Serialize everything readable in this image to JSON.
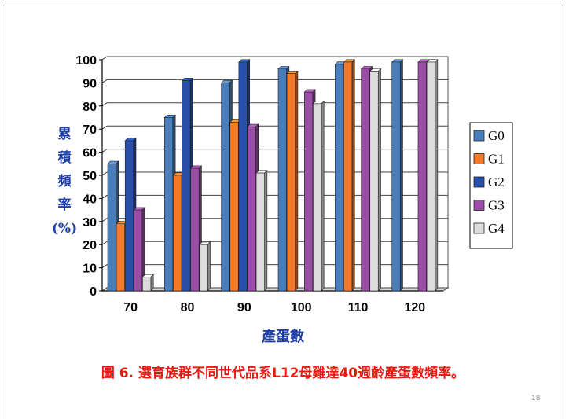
{
  "chart_data": {
    "type": "bar",
    "title": "",
    "xlabel": "產蛋數",
    "ylabel": [
      "累",
      "積",
      "頻",
      "率",
      "(%)"
    ],
    "categories": [
      "70",
      "80",
      "90",
      "100",
      "110",
      "120"
    ],
    "ylim": [
      0,
      100
    ],
    "yticks": [
      0,
      10,
      20,
      30,
      40,
      50,
      60,
      70,
      80,
      90,
      100
    ],
    "grid": true,
    "legend": "right",
    "series": [
      {
        "name": "G0",
        "color": "#4a7ebb",
        "values": [
          55,
          75,
          90,
          96,
          98,
          99
        ]
      },
      {
        "name": "G1",
        "color": "#f27a2a",
        "values": [
          29,
          50,
          73,
          94,
          99,
          0
        ]
      },
      {
        "name": "G2",
        "color": "#2850a8",
        "values": [
          65,
          91,
          99,
          0,
          0,
          0
        ]
      },
      {
        "name": "G3",
        "color": "#9b4ea6",
        "values": [
          35,
          53,
          71,
          86,
          96,
          99
        ]
      },
      {
        "name": "G4",
        "color": "#dcdcdc",
        "values": [
          6,
          20,
          51,
          81,
          95,
          99
        ]
      }
    ]
  },
  "caption": "圖 6. 選育族群不同世代品系L12母雞達40週齡產蛋數頻率。",
  "page_number": "18"
}
